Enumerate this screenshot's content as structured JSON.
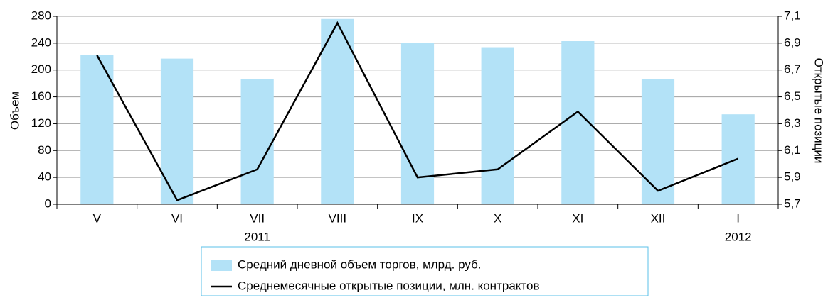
{
  "chart_data": {
    "type": "bar_line",
    "categories": [
      "V",
      "VI",
      "VII",
      "VIII",
      "IX",
      "X",
      "XI",
      "XII",
      "I"
    ],
    "annotations": [
      "2011",
      "2012"
    ],
    "ylabel": "Объем",
    "y2label": "Открытые позиции",
    "ylim": [
      0,
      280
    ],
    "yticks": [
      0,
      40,
      80,
      120,
      160,
      200,
      240,
      280
    ],
    "y2lim": [
      5.7,
      7.1
    ],
    "y2ticks": [
      {
        "value": 5.7,
        "label": "5,7"
      },
      {
        "value": 5.9,
        "label": "5,9"
      },
      {
        "value": 6.1,
        "label": "6,1"
      },
      {
        "value": 6.3,
        "label": "6,3"
      },
      {
        "value": 6.5,
        "label": "6,5"
      },
      {
        "value": 6.7,
        "label": "6,7"
      },
      {
        "value": 6.9,
        "label": "6,9"
      },
      {
        "value": 7.1,
        "label": "7,1"
      }
    ],
    "grid": true,
    "series": [
      {
        "name": "Средний дневной объем торгов, млрд. руб.",
        "color": "#b3e2f7",
        "kind": "bar",
        "values": [
          222,
          217,
          187,
          276,
          240,
          234,
          243,
          187,
          134
        ]
      },
      {
        "name": "Среднемесячные открытые позиции, млн. контрактов",
        "color": "#000000",
        "kind": "line",
        "axis": "y2",
        "values": [
          6.81,
          5.73,
          5.96,
          7.05,
          5.9,
          5.96,
          6.39,
          5.8,
          6.04
        ]
      }
    ]
  }
}
